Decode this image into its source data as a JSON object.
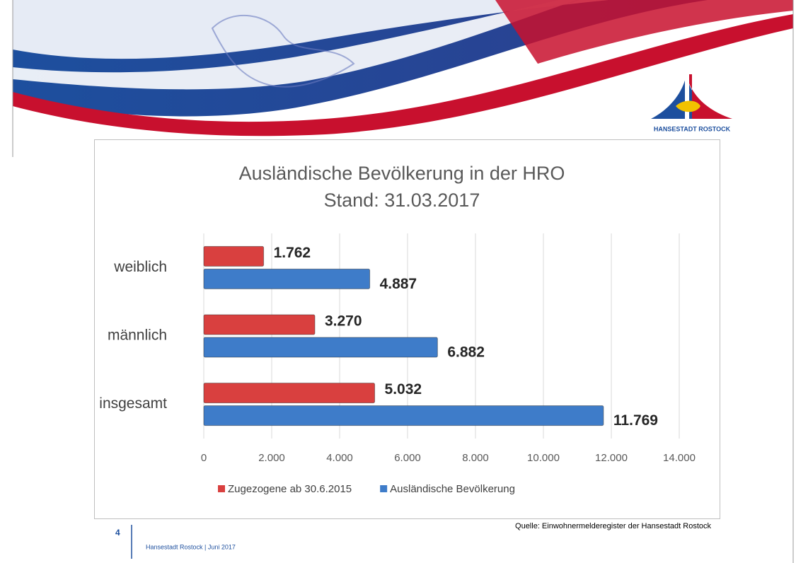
{
  "slide": {
    "logo": "HANSESTADT ROSTOCK",
    "number": "4",
    "footer": "Hansestadt Rostock | Juni 2017",
    "source": "Quelle: Einwohnermelderegister der Hansestadt Rostock"
  },
  "chart_data": {
    "type": "hbar",
    "title": "Ausländische Bevölkerung in der HRO",
    "subtitle": "Stand: 31.03.2017",
    "categories": [
      "weiblich",
      "männlich",
      "insgesamt"
    ],
    "series": [
      {
        "name": "Zugezogene ab 30.6.2015",
        "color": "#d9403f",
        "values": [
          1762,
          3270,
          5032
        ],
        "value_labels": [
          "1.762",
          "3.270",
          "5.032"
        ]
      },
      {
        "name": "Ausländische Bevölkerung",
        "color": "#3e7cc9",
        "values": [
          4887,
          6882,
          11769
        ],
        "value_labels": [
          "4.887",
          "6.882",
          "11.769"
        ]
      }
    ],
    "xlim": [
      0,
      14000
    ],
    "xticks": [
      0,
      {
        "value": 2000,
        "label": "2.000"
      },
      {
        "value": 4000,
        "label": "4.000"
      },
      {
        "value": 6000,
        "label": "6.000"
      },
      {
        "value": 8000,
        "label": "8.000"
      },
      {
        "value": 10000,
        "label": "10.000"
      },
      {
        "value": 12000,
        "label": "12.000"
      },
      {
        "value": 14000,
        "label": "14.000"
      }
    ],
    "grid": true,
    "legend": "bottom"
  }
}
